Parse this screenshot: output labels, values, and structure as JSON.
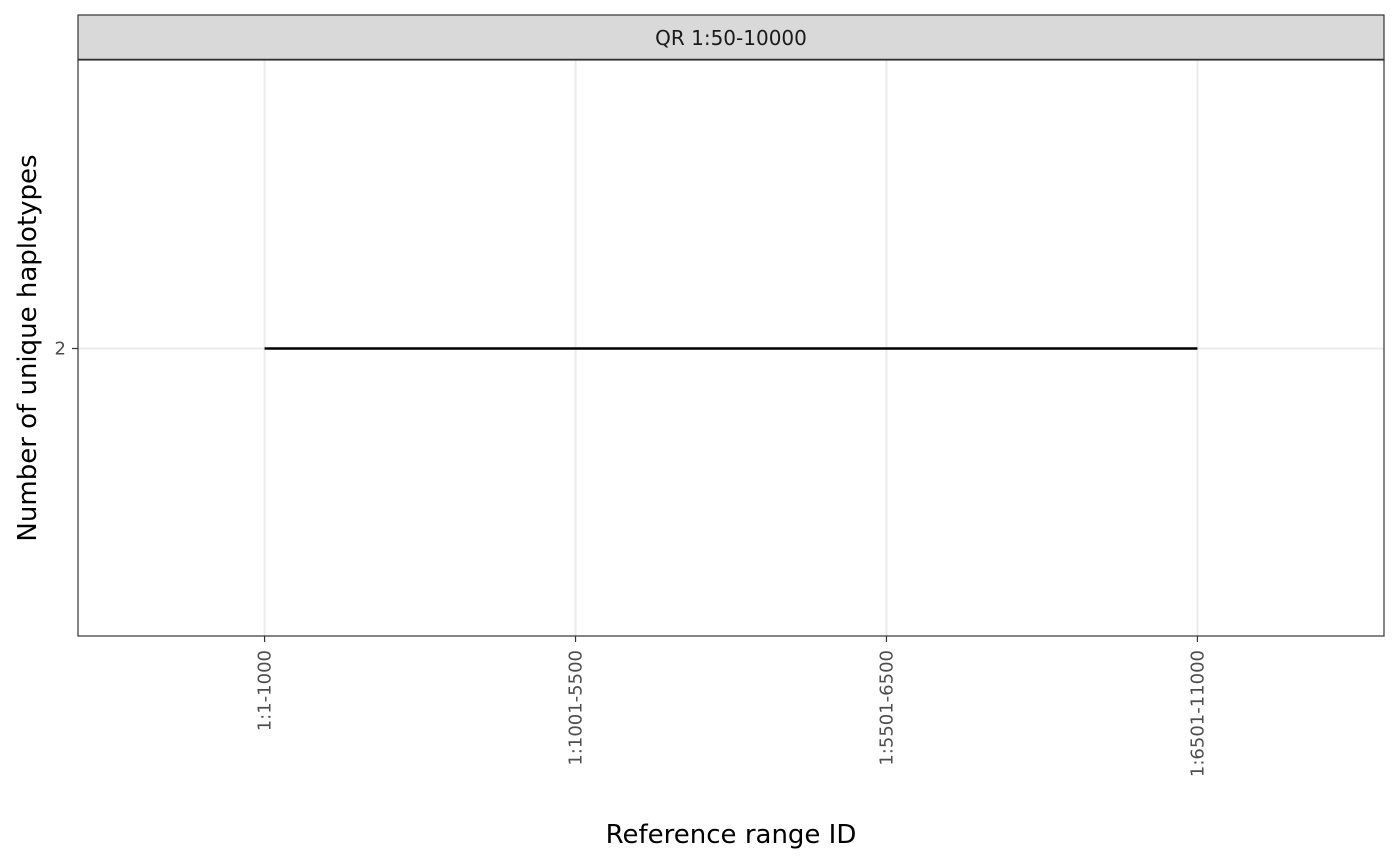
{
  "chart_data": {
    "type": "line",
    "facet_label": "QR 1:50-10000",
    "xlabel": "Reference range ID",
    "ylabel": "Number of unique haplotypes",
    "categories": [
      "1:1-1000",
      "1:1001-5500",
      "1:5501-6500",
      "1:6501-11000"
    ],
    "y_ticks": [
      2
    ],
    "series": [
      {
        "values": [
          2,
          2,
          2,
          2
        ]
      }
    ],
    "grid": true,
    "colors": {
      "line": "#000000",
      "strip_fill": "#d9d9d9",
      "grid": "#ebebeb",
      "border": "#333333"
    }
  }
}
